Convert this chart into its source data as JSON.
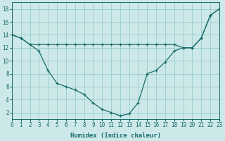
{
  "xlabel": "Humidex (Indice chaleur)",
  "line1_x": [
    0,
    1,
    2,
    3,
    4,
    5,
    6,
    7,
    8,
    9,
    10,
    11,
    12,
    13,
    14,
    15,
    16,
    17,
    18,
    19,
    20,
    21,
    22,
    23
  ],
  "line1_y": [
    14,
    13.5,
    12.5,
    12.5,
    12.5,
    12.5,
    12.5,
    12.5,
    12.5,
    12.5,
    12.5,
    12.5,
    12.5,
    12.5,
    12.5,
    12.5,
    12.5,
    12.5,
    12.5,
    12.0,
    12.0,
    13.5,
    17.0,
    18.0
  ],
  "line2_x": [
    0,
    1,
    2,
    3,
    4,
    5,
    6,
    7,
    8,
    9,
    10,
    11,
    12,
    13,
    14,
    15,
    16,
    17,
    18,
    19,
    20,
    21,
    22,
    23
  ],
  "line2_y": [
    14.0,
    13.5,
    12.5,
    11.5,
    8.5,
    6.5,
    6.0,
    5.5,
    4.8,
    3.5,
    2.5,
    2.0,
    1.5,
    1.8,
    3.5,
    8.0,
    8.5,
    9.8,
    11.5,
    12.0,
    12.0,
    13.5,
    17.0,
    18.0
  ],
  "line_color": "#1a6b6b",
  "bg_color": "#cce8e8",
  "grid_color": "#99cccc",
  "xlim": [
    0,
    23
  ],
  "ylim": [
    1,
    19
  ],
  "yticks": [
    2,
    4,
    6,
    8,
    10,
    12,
    14,
    16,
    18
  ],
  "xticks": [
    0,
    1,
    2,
    3,
    4,
    5,
    6,
    7,
    8,
    9,
    10,
    11,
    12,
    13,
    14,
    15,
    16,
    17,
    18,
    19,
    20,
    21,
    22,
    23
  ],
  "xlabel_fontsize": 6.5,
  "tick_fontsize": 5.5
}
